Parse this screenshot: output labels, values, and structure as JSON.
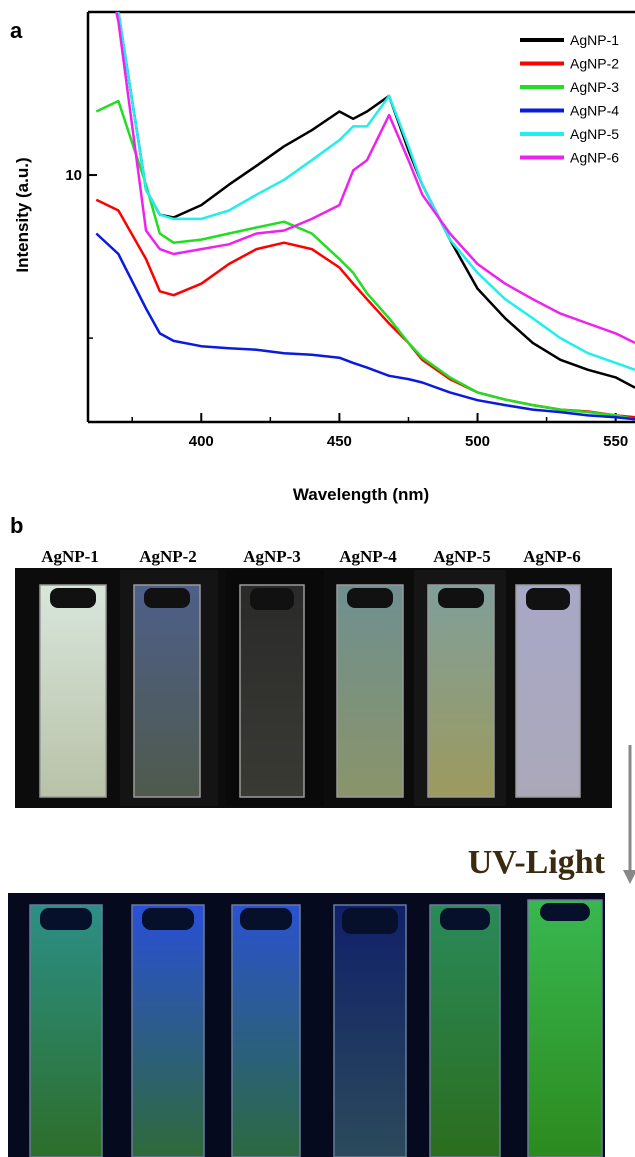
{
  "panel_a_label": "a",
  "chart_data": {
    "type": "line",
    "ylabel": "Intensity (a.u.)",
    "xlabel": "Wavelength (nm)",
    "x": [
      362,
      370,
      380,
      385,
      390,
      400,
      410,
      420,
      430,
      440,
      450,
      455,
      460,
      468,
      475,
      480,
      490,
      500,
      510,
      520,
      530,
      540,
      550,
      557
    ],
    "series": [
      {
        "name": "AgNP-1",
        "color": "#000000",
        "values": [
          28,
          20,
          9.4,
          8.45,
          8.35,
          8.8,
          9.6,
          10.4,
          11.3,
          12.1,
          13.1,
          12.7,
          13.1,
          14.0,
          11.1,
          9.6,
          7.6,
          6.17,
          5.44,
          4.9,
          4.56,
          4.37,
          4.23,
          4.05
        ]
      },
      {
        "name": "AgNP-2",
        "color": "#ff0000",
        "values": [
          9.0,
          8.6,
          7.0,
          6.1,
          6.0,
          6.3,
          6.85,
          7.3,
          7.5,
          7.3,
          6.75,
          6.3,
          5.9,
          5.32,
          4.9,
          4.56,
          4.2,
          3.97,
          3.85,
          3.76,
          3.69,
          3.66,
          3.6,
          3.57
        ]
      },
      {
        "name": "AgNP-3",
        "color": "#22dd22",
        "values": [
          13.1,
          13.7,
          9.6,
          7.8,
          7.5,
          7.6,
          7.8,
          8.0,
          8.2,
          7.8,
          7.0,
          6.6,
          6.05,
          5.44,
          4.9,
          4.6,
          4.23,
          3.97,
          3.85,
          3.76,
          3.69,
          3.65,
          3.6,
          3.54
        ]
      },
      {
        "name": "AgNP-4",
        "color": "#0a1adf",
        "values": [
          7.8,
          7.15,
          5.67,
          5.1,
          4.94,
          4.83,
          4.79,
          4.76,
          4.69,
          4.66,
          4.6,
          4.5,
          4.41,
          4.26,
          4.2,
          4.14,
          3.97,
          3.84,
          3.76,
          3.69,
          3.65,
          3.6,
          3.57,
          3.54
        ]
      },
      {
        "name": "AgNP-5",
        "color": "#22eeee",
        "values": [
          28,
          20,
          9.4,
          8.45,
          8.3,
          8.3,
          8.6,
          9.2,
          9.8,
          10.65,
          11.6,
          12.3,
          12.3,
          14.0,
          11.3,
          9.6,
          7.6,
          6.6,
          5.9,
          5.44,
          5.0,
          4.69,
          4.5,
          4.37
        ]
      },
      {
        "name": "AgNP-6",
        "color": "#ee22ee",
        "values": [
          30,
          19.2,
          7.9,
          7.3,
          7.15,
          7.3,
          7.45,
          7.8,
          7.9,
          8.3,
          8.8,
          10.2,
          10.65,
          12.9,
          10.65,
          9.2,
          7.8,
          6.85,
          6.3,
          5.9,
          5.55,
          5.32,
          5.1,
          4.9
        ]
      }
    ],
    "xlim": [
      359,
      557
    ],
    "xticks": [
      400,
      450,
      500,
      550
    ],
    "minor_xticks": [
      375,
      425,
      475,
      525
    ],
    "ylim": [
      3.5,
      20
    ],
    "yticks": [
      10
    ],
    "minor_yticks": [
      5
    ],
    "log_y": true,
    "legend": "upper-right"
  },
  "panel_b_label": "b",
  "sample_labels": [
    "AgNP-1",
    "AgNP-2",
    "AgNP-3",
    "AgNP-4",
    "AgNP-5",
    "AgNP-6"
  ],
  "uv_label": "UV-Light"
}
